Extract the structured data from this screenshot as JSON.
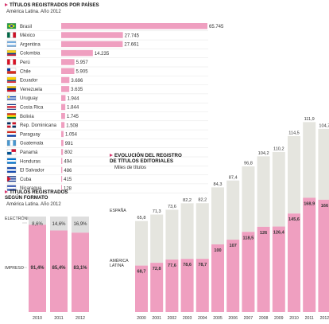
{
  "chart_data": [
    {
      "type": "bar",
      "orientation": "horizontal",
      "title": "TÍTULOS REGISTRADOS POR PAÍSES",
      "subtitle": "América Latina. Año 2012",
      "categories": [
        "Brasil",
        "México",
        "Argentina",
        "Colombia",
        "Perú",
        "Chile",
        "Ecuador",
        "Venezuela",
        "Uruguay",
        "Costa Rica",
        "Bolivia",
        "Rep. Dominicana",
        "Paraguay",
        "Guatemala",
        "Panamá",
        "Honduras",
        "El Salvador",
        "Cuba",
        "Nicaragua"
      ],
      "values": [
        65745,
        27745,
        27661,
        14235,
        5957,
        5905,
        3696,
        3635,
        1944,
        1844,
        1745,
        1508,
        1054,
        991,
        802,
        494,
        486,
        415,
        128
      ],
      "value_labels": [
        "65.745",
        "27.745",
        "27.661",
        "14.235",
        "5.957",
        "5.905",
        "3.696",
        "3.635",
        "1.944",
        "1.844",
        "1.745",
        "1.508",
        "1.054",
        "991",
        "802",
        "494",
        "486",
        "415",
        "128"
      ],
      "colors": {
        "bar": "#ef9fc0"
      }
    },
    {
      "type": "bar",
      "stacked": true,
      "title": "TÍTULOS REGISTRADOS SEGÚN FORMATO",
      "subtitle": "América Latina. Año 2012",
      "categories": [
        "2010",
        "2011",
        "2012"
      ],
      "series": [
        {
          "name": "IMPRESO",
          "values": [
            91.4,
            85.4,
            83.1
          ],
          "labels": [
            "91,4%",
            "85,4%",
            "83,1%"
          ],
          "color": "#ef9fc0"
        },
        {
          "name": "ELECTRÓNICO",
          "values": [
            8.6,
            14.6,
            16.9
          ],
          "labels": [
            "8,6%",
            "14,6%",
            "16,9%"
          ],
          "color": "#dedede"
        }
      ],
      "ylim": [
        0,
        100
      ]
    },
    {
      "type": "bar",
      "stacked": true,
      "title": "EVOLUCIÓN DEL REGISTRO DE TÍTULOS EDITORIALES",
      "subtitle": "Miles de títulos",
      "categories": [
        "2000",
        "2001",
        "2002",
        "2003",
        "2004",
        "2005",
        "2006",
        "2007",
        "2008",
        "2009",
        "2010",
        "2011",
        "2012"
      ],
      "series": [
        {
          "name": "AMÉRICA LATINA",
          "values": [
            68.7,
            72.8,
            77.6,
            78.6,
            78.7,
            100,
            107,
            118.5,
            126,
            126.4,
            145.6,
            168.9,
            166
          ],
          "labels": [
            "68,7",
            "72,8",
            "77,6",
            "78,6",
            "78,7",
            "100",
            "107",
            "118,5",
            "126",
            "126,4",
            "145,6",
            "168,9",
            "166"
          ],
          "color": "#ef9fc0"
        },
        {
          "name": "ESPAÑA",
          "values": [
            65.8,
            71.3,
            73.6,
            82.2,
            82.2,
            84.3,
            87.4,
            96.8,
            104.2,
            110.2,
            114.5,
            111.9,
            104.7
          ],
          "labels": [
            "65,8",
            "71,3",
            "73,6",
            "82,2",
            "82,2",
            "84,3",
            "87,4",
            "96,8",
            "104,2",
            "110,2",
            "114,5",
            "111,9",
            "104,7"
          ],
          "color": "#e5e5df"
        }
      ]
    }
  ]
}
